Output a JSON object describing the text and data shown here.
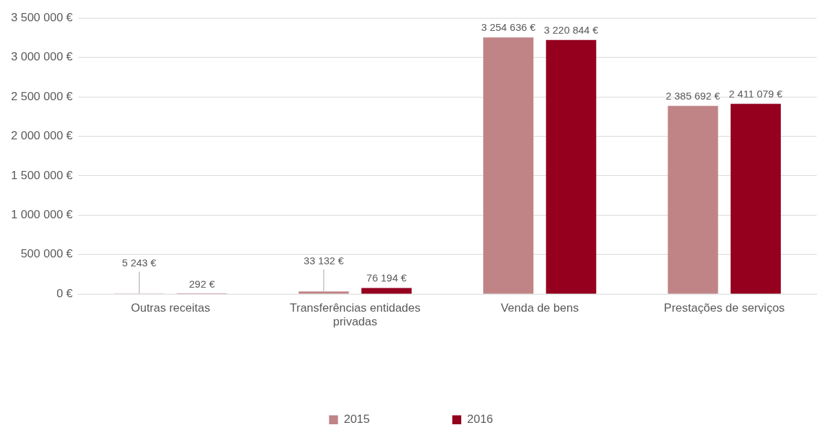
{
  "chart_data": {
    "type": "bar",
    "categories": [
      "Outras receitas",
      "Transferências entidades privadas",
      "Venda de bens",
      "Prestações de serviços"
    ],
    "series": [
      {
        "name": "2015",
        "color": "#c08487",
        "values": [
          5243,
          33132,
          3254636,
          2385692
        ],
        "value_labels": [
          "5 243 €",
          "33 132 €",
          "3 254 636 €",
          "2 385 692 €"
        ]
      },
      {
        "name": "2016",
        "color": "#94001e",
        "values": [
          292,
          76194,
          3220844,
          2411079
        ],
        "value_labels": [
          "292 €",
          "76 194 €",
          "3 220 844 €",
          "2 411 079 €"
        ]
      }
    ],
    "ylim": [
      0,
      3500000
    ],
    "yticks": [
      {
        "value": 0,
        "label": "0 €"
      },
      {
        "value": 500000,
        "label": "500 000 €"
      },
      {
        "value": 1000000,
        "label": "1 000 000 €"
      },
      {
        "value": 1500000,
        "label": "1 500 000 €"
      },
      {
        "value": 2000000,
        "label": "2 000 000 €"
      },
      {
        "value": 2500000,
        "label": "2 500 000 €"
      },
      {
        "value": 3000000,
        "label": "3 000 000 €"
      },
      {
        "value": 3500000,
        "label": "3 500 000 €"
      }
    ],
    "grid": "y",
    "legend": "bottom"
  }
}
